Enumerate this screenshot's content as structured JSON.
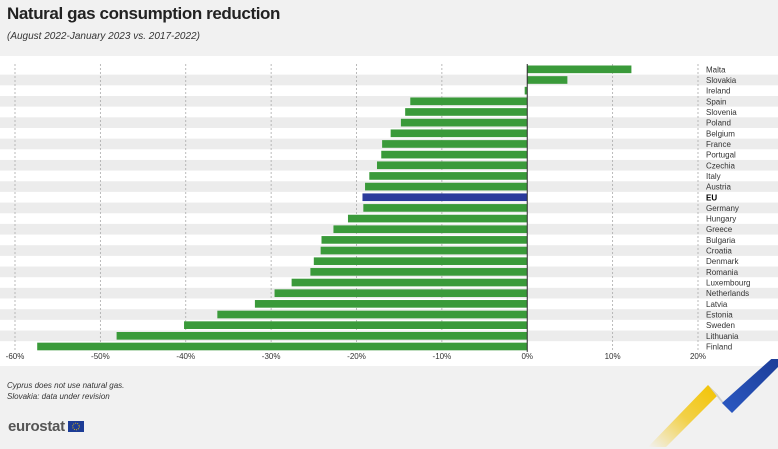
{
  "title": "Natural gas consumption reduction",
  "subtitle": "(August 2022-January 2023 vs. 2017-2022)",
  "notes": [
    "Cyprus does not use natural gas.",
    "Slovakia: data under revision"
  ],
  "logo_text": "eurostat",
  "colors": {
    "bar": "#3a9a3a",
    "highlight": "#2b3a9c",
    "band": "#ececec",
    "grid": "#aaaaaa",
    "axis": "#333333",
    "deco_yellow": "#f3c300",
    "deco_blue": "#1c3c96"
  },
  "chart_data": {
    "type": "bar",
    "orientation": "horizontal",
    "title": "Natural gas consumption reduction",
    "subtitle": "(August 2022-January 2023 vs. 2017-2022)",
    "xlim": [
      -60,
      20
    ],
    "ticks": [
      "-60%",
      "-50%",
      "-40%",
      "-30%",
      "-20%",
      "-10%",
      "0%",
      "10%",
      "20%"
    ],
    "tick_values": [
      -60,
      -50,
      -40,
      -30,
      -20,
      -10,
      0,
      10,
      20
    ],
    "grid": true,
    "highlight": "EU",
    "categories": [
      "Malta",
      "Slovakia",
      "Ireland",
      "Spain",
      "Slovenia",
      "Poland",
      "Belgium",
      "France",
      "Portugal",
      "Czechia",
      "Italy",
      "Austria",
      "EU",
      "Germany",
      "Hungary",
      "Greece",
      "Bulgaria",
      "Croatia",
      "Denmark",
      "Romania",
      "Luxembourg",
      "Netherlands",
      "Latvia",
      "Estonia",
      "Sweden",
      "Lithuania",
      "Finland"
    ],
    "values": [
      12.2,
      4.7,
      -0.3,
      -13.7,
      -14.3,
      -14.8,
      -16.0,
      -17.0,
      -17.1,
      -17.6,
      -18.5,
      -19.0,
      -19.3,
      -19.2,
      -21.0,
      -22.7,
      -24.1,
      -24.2,
      -25.0,
      -25.4,
      -27.6,
      -29.6,
      -31.9,
      -36.3,
      -40.2,
      -48.1,
      -57.4
    ]
  }
}
